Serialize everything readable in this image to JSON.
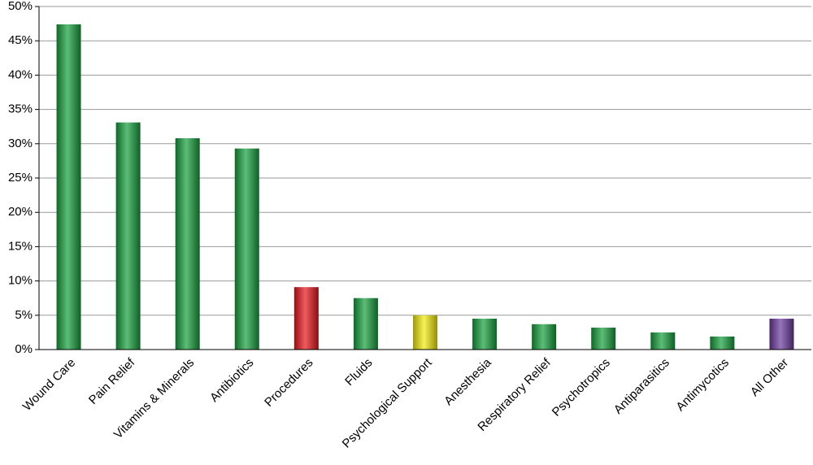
{
  "chart_data": {
    "type": "bar",
    "categories": [
      "Wound Care",
      "Pain Relief",
      "Vitamins & Minerals",
      "Antibiotics",
      "Procedures",
      "Fluids",
      "Psychological Support",
      "Anesthesia",
      "Respiratory Relief",
      "Psychotropics",
      "Antiparasitics",
      "Antimycotics",
      "All Other"
    ],
    "values": [
      47.4,
      33.1,
      30.8,
      29.3,
      9.1,
      7.5,
      5.0,
      4.5,
      3.7,
      3.2,
      2.5,
      1.9,
      4.5
    ],
    "colors": [
      "#16a03c",
      "#16a03c",
      "#16a03c",
      "#16a03c",
      "#e8151b",
      "#16a03c",
      "#f4ec0c",
      "#16a03c",
      "#16a03c",
      "#16a03c",
      "#16a03c",
      "#16a03c",
      "#6b3a9e"
    ],
    "ylim": [
      0,
      50
    ],
    "yticks": [
      {
        "value": 0,
        "label": "0%"
      },
      {
        "value": 5,
        "label": "5%"
      },
      {
        "value": 10,
        "label": "10%"
      },
      {
        "value": 15,
        "label": "15%"
      },
      {
        "value": 20,
        "label": "20%"
      },
      {
        "value": 25,
        "label": "25%"
      },
      {
        "value": 30,
        "label": "30%"
      },
      {
        "value": 35,
        "label": "35%"
      },
      {
        "value": 40,
        "label": "40%"
      },
      {
        "value": 45,
        "label": "45%"
      },
      {
        "value": 50,
        "label": "50%"
      }
    ],
    "grid": true
  }
}
